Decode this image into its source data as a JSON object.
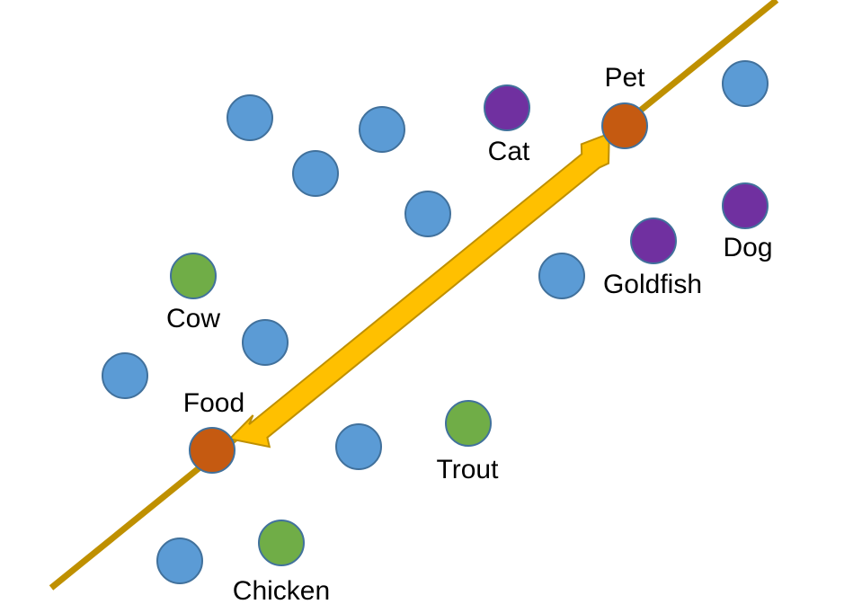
{
  "colors": {
    "background": "#ffffff",
    "unlabeled_node": "#5b9bd5",
    "pet_node": "#7030a0",
    "food_node": "#70ad47",
    "anchor_node": "#c55a11",
    "axis_line": "#bf9000",
    "arrow_fill": "#ffc000",
    "arrow_stroke": "#bf9000"
  },
  "labels": {
    "pet": "Pet",
    "food": "Food",
    "cat": "Cat",
    "dog": "Dog",
    "goldfish": "Goldfish",
    "cow": "Cow",
    "trout": "Trout",
    "chicken": "Chicken"
  }
}
